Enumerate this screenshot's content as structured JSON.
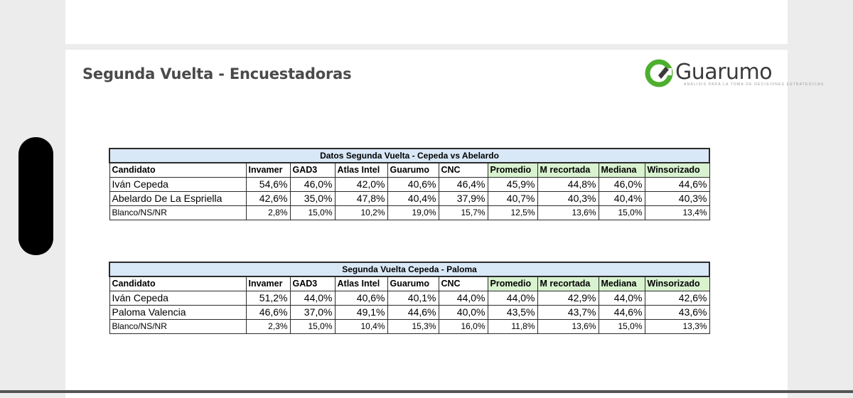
{
  "slide": {
    "title": "Segunda Vuelta - Encuestadoras"
  },
  "logo": {
    "word": "Guarumo",
    "tagline": "ANALISIS PARA LA TOMA DE DECISIONES ESTRATEGICAS",
    "accent_color": "#4caf2e"
  },
  "colors": {
    "title_bar": "#d9e8f7",
    "stat_header": "#d9f2d0"
  },
  "tables": [
    {
      "title": "Datos Segunda Vuelta - Cepeda vs Abelardo",
      "headers": [
        "Candidato",
        "Invamer",
        "GAD3",
        "Atlas Intel",
        "Guarumo",
        "CNC",
        "Promedio",
        "M recortada",
        "Mediana",
        "Winsorizado"
      ],
      "rows": [
        [
          "Iván Cepeda",
          "54,6%",
          "46,0%",
          "42,0%",
          "40,6%",
          "46,4%",
          "45,9%",
          "44,8%",
          "46,0%",
          "44,6%"
        ],
        [
          "Abelardo De La Espriella",
          "42,6%",
          "35,0%",
          "47,8%",
          "40,4%",
          "37,9%",
          "40,7%",
          "40,3%",
          "40,4%",
          "40,3%"
        ],
        [
          "Blanco/NS/NR",
          "2,8%",
          "15,0%",
          "10,2%",
          "19,0%",
          "15,7%",
          "12,5%",
          "13,6%",
          "15,0%",
          "13,4%"
        ]
      ]
    },
    {
      "title": "Segunda Vuelta  Cepeda - Paloma",
      "headers": [
        "Candidato",
        "Invamer",
        "GAD3",
        "Atlas Intel",
        "Guarumo",
        "CNC",
        "Promedio",
        "M recortada",
        "Mediana",
        "Winsorizado"
      ],
      "rows": [
        [
          "Iván Cepeda",
          "51,2%",
          "44,0%",
          "40,6%",
          "40,1%",
          "44,0%",
          "44,0%",
          "42,9%",
          "44,0%",
          "42,6%"
        ],
        [
          "Paloma Valencia",
          "46,6%",
          "37,0%",
          "49,1%",
          "44,6%",
          "40,0%",
          "43,5%",
          "43,7%",
          "44,6%",
          "43,6%"
        ],
        [
          "Blanco/NS/NR",
          "2,3%",
          "15,0%",
          "10,4%",
          "15,3%",
          "16,0%",
          "11,8%",
          "13,6%",
          "15,0%",
          "13,3%"
        ]
      ]
    }
  ]
}
